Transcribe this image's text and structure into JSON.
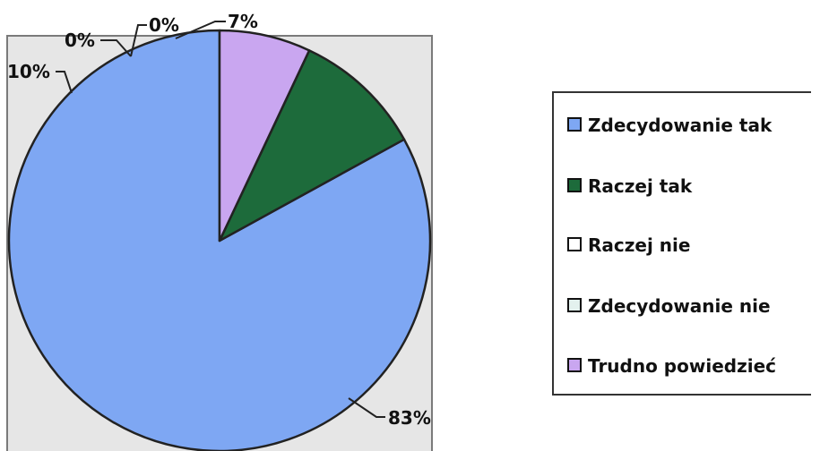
{
  "chart_data": {
    "type": "pie",
    "categories": [
      "Zdecydowanie tak",
      "Raczej tak",
      "Raczej nie",
      "Zdecydowanie nie",
      "Trudno powiedzieć"
    ],
    "values": [
      83,
      10,
      0,
      0,
      7
    ],
    "labels": [
      "83%",
      "10%",
      "0%",
      "0%",
      "7%"
    ],
    "colors": [
      "#7ea7f3",
      "#1d6b3b",
      "#ffffff",
      "#e3f1ee",
      "#c9a6f0"
    ],
    "legend_position": "right"
  }
}
